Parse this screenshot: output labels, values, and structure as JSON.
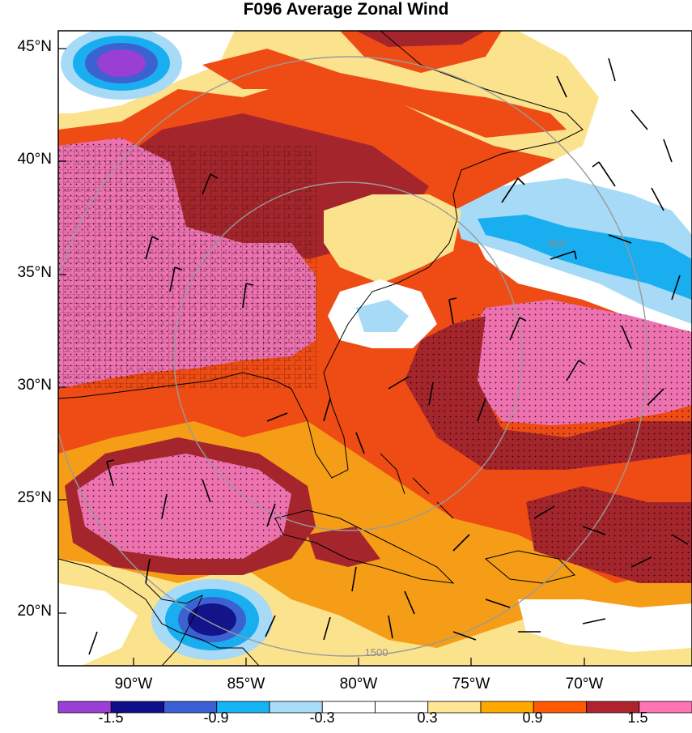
{
  "title": "F096 Average Zonal Wind",
  "lat_labels": [
    "45°N",
    "40°N",
    "35°N",
    "30°N",
    "25°N",
    "20°N"
  ],
  "lon_labels": [
    "90°W",
    "85°W",
    "80°W",
    "75°W",
    "70°W"
  ],
  "range_rings": [
    {
      "label": "900"
    },
    {
      "label": "1500"
    }
  ],
  "colorbar": {
    "colors": [
      "#9b3fd6",
      "#0f0f8c",
      "#3a5fd6",
      "#14b4f5",
      "#a8dcf8",
      "#ffffff",
      "#ffffff",
      "#ffe795",
      "#ffa800",
      "#ff5a00",
      "#b0222e",
      "#ff74b4"
    ],
    "labels": [
      "-1.5",
      "-0.9",
      "-0.3",
      "0.3",
      "0.9",
      "1.5"
    ]
  },
  "colors": {
    "magenta": "#ee72b0",
    "dark_red": "#a4262c",
    "orange_red": "#ee4c14",
    "orange": "#f59d16",
    "light_yellow": "#fbe38e",
    "light_blue": "#a6daf7",
    "sky_blue": "#18aef0",
    "blue": "#3c62d2",
    "navy": "#13138a",
    "purple": "#9a3ed4"
  }
}
